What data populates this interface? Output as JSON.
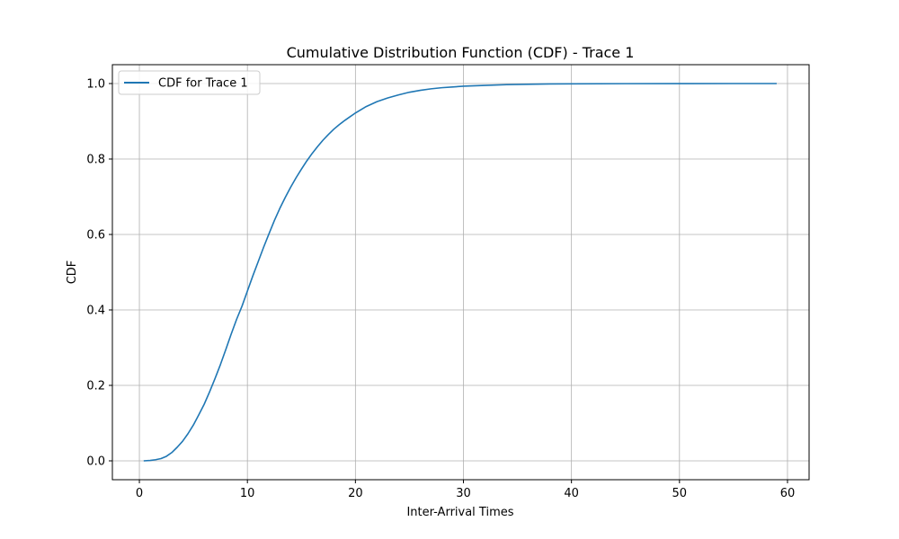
{
  "chart_data": {
    "type": "line",
    "title": "Cumulative Distribution Function (CDF) - Trace 1",
    "xlabel": "Inter-Arrival Times",
    "ylabel": "CDF",
    "xlim": [
      -2.5,
      62
    ],
    "ylim": [
      -0.05,
      1.05
    ],
    "xticks": [
      0,
      10,
      20,
      30,
      40,
      50,
      60
    ],
    "yticks": [
      0.0,
      0.2,
      0.4,
      0.6,
      0.8,
      1.0
    ],
    "xtick_labels": [
      "0",
      "10",
      "20",
      "30",
      "40",
      "50",
      "60"
    ],
    "ytick_labels": [
      "0.0",
      "0.2",
      "0.4",
      "0.6",
      "0.8",
      "1.0"
    ],
    "grid": true,
    "legend_position": "top-left",
    "series": [
      {
        "name": "CDF for Trace 1",
        "color": "#1f77b4",
        "x": [
          0.4,
          1,
          1.5,
          2,
          2.5,
          3,
          3.5,
          4,
          4.5,
          5,
          5.5,
          6,
          6.5,
          7,
          7.5,
          8,
          8.5,
          9,
          9.5,
          10,
          10.5,
          11,
          11.5,
          12,
          12.5,
          13,
          13.5,
          14,
          14.5,
          15,
          15.5,
          16,
          16.5,
          17,
          17.5,
          18,
          18.5,
          19,
          19.5,
          20,
          21,
          22,
          23,
          24,
          25,
          26,
          27,
          28,
          29,
          30,
          32,
          34,
          36,
          38,
          40,
          45,
          50,
          55,
          59
        ],
        "y": [
          0.0,
          0.001,
          0.003,
          0.006,
          0.012,
          0.022,
          0.036,
          0.052,
          0.072,
          0.095,
          0.122,
          0.15,
          0.183,
          0.218,
          0.255,
          0.295,
          0.336,
          0.375,
          0.41,
          0.45,
          0.49,
          0.528,
          0.566,
          0.602,
          0.637,
          0.669,
          0.698,
          0.725,
          0.75,
          0.773,
          0.795,
          0.815,
          0.833,
          0.85,
          0.865,
          0.879,
          0.891,
          0.902,
          0.912,
          0.922,
          0.939,
          0.952,
          0.962,
          0.97,
          0.977,
          0.982,
          0.986,
          0.989,
          0.991,
          0.993,
          0.995,
          0.997,
          0.998,
          0.999,
          0.9993,
          0.9997,
          0.9999,
          1.0,
          1.0
        ]
      }
    ]
  }
}
